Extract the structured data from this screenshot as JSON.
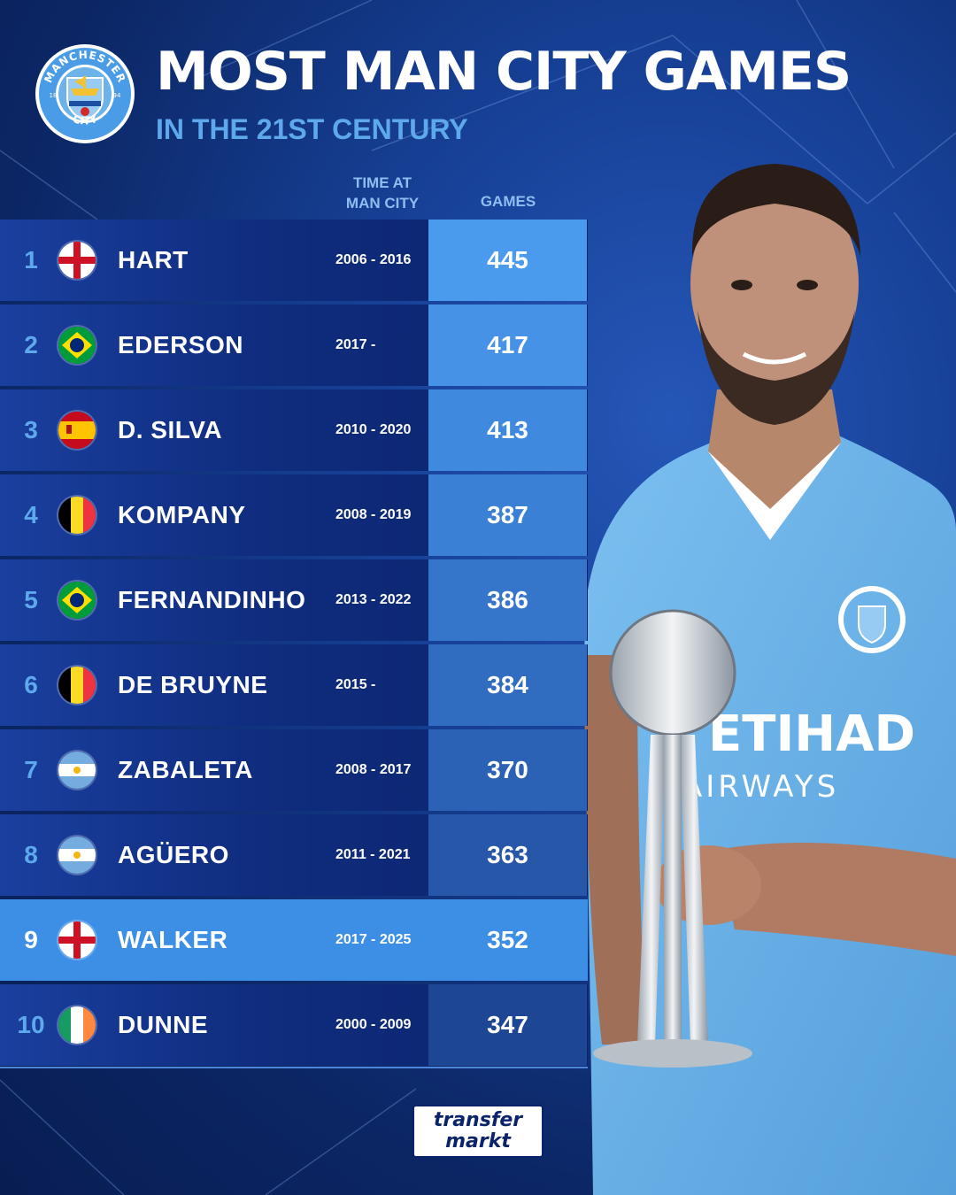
{
  "header": {
    "title": "MOST MAN CITY GAMES",
    "subtitle": "IN THE 21ST CENTURY",
    "col_time_line1": "TIME AT",
    "col_time_line2": "MAN CITY",
    "col_games": "GAMES"
  },
  "logo": {
    "top_text": "MANCHESTER",
    "bottom_text": "CITY",
    "year_left": "18",
    "year_right": "94"
  },
  "rows": [
    {
      "rank": "1",
      "flag": "england",
      "name": "HART",
      "period": "2006 - 2016",
      "games": "445",
      "games_bg": "#4a9aee"
    },
    {
      "rank": "2",
      "flag": "brazil",
      "name": "EDERSON",
      "period": "2017 -",
      "games": "417",
      "games_bg": "#4592e6"
    },
    {
      "rank": "3",
      "flag": "spain",
      "name": "D. SILVA",
      "period": "2010 - 2020",
      "games": "413",
      "games_bg": "#3f89de"
    },
    {
      "rank": "4",
      "flag": "belgium",
      "name": "KOMPANY",
      "period": "2008 - 2019",
      "games": "387",
      "games_bg": "#3a80d5"
    },
    {
      "rank": "5",
      "flag": "brazil",
      "name": "FERNANDINHO",
      "period": "2013 - 2022",
      "games": "386",
      "games_bg": "#3576cb"
    },
    {
      "rank": "6",
      "flag": "belgium",
      "name": "DE BRUYNE",
      "period": "2015 -",
      "games": "384",
      "games_bg": "#306cc0"
    },
    {
      "rank": "7",
      "flag": "argentina",
      "name": "ZABALETA",
      "period": "2008 - 2017",
      "games": "370",
      "games_bg": "#2b62b5"
    },
    {
      "rank": "8",
      "flag": "argentina",
      "name": "AGÜERO",
      "period": "2011 - 2021",
      "games": "363",
      "games_bg": "#2657a8"
    },
    {
      "rank": "9",
      "flag": "england",
      "name": "WALKER",
      "period": "2017 - 2025",
      "games": "352",
      "games_bg": "#3d8fe6",
      "highlight": true
    },
    {
      "rank": "10",
      "flag": "ireland",
      "name": "DUNNE",
      "period": "2000 - 2009",
      "games": "347",
      "games_bg": "#1d4794"
    }
  ],
  "shirt": {
    "sponsor_line1": "ETIHAD",
    "sponsor_line2": "AIRWAYS"
  },
  "brand": {
    "line1": "transfer",
    "line2": "markt"
  },
  "colors": {
    "accent_light_blue": "#5ea8ec",
    "row_dark": "#0f2c7e",
    "highlight": "#3d8fe6",
    "shirt": "#6cb3ea"
  }
}
